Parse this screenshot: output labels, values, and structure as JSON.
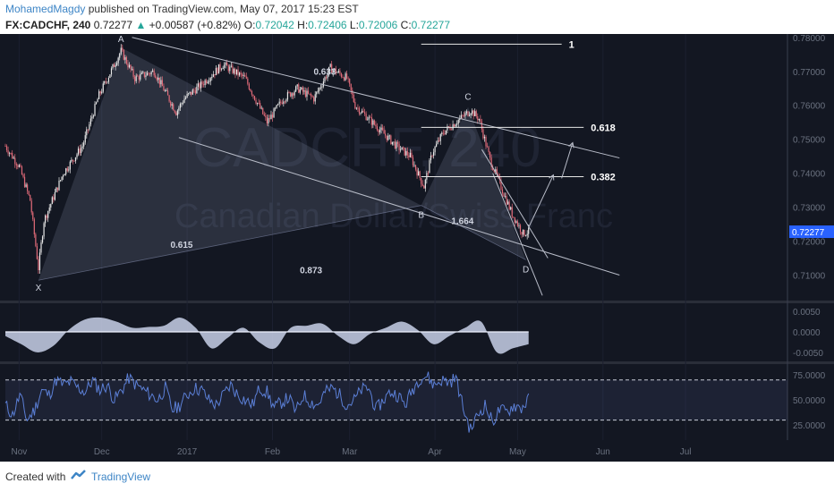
{
  "header": {
    "author": "MohamedMagdy",
    "published_text": "published on TradingView.com, May 07, 2017 15:23 EST",
    "symbol": "FX:CADCHF, 240",
    "last": "0.72277",
    "change": "+0.00587 (+0.82%)",
    "open_label": "O:",
    "open": "0.72042",
    "high_label": "H:",
    "high": "0.72406",
    "low_label": "L:",
    "low": "0.72006",
    "close_label": "C:",
    "close": "0.72277"
  },
  "watermark": {
    "symbol": "CADCHF, 240",
    "name": "Canadian Dollar/Swiss Franc"
  },
  "footer": {
    "created_with": "Created with",
    "brand": "TradingView"
  },
  "colors": {
    "background": "#131722",
    "candle_up": "#e8e8e8",
    "candle_down": "#e06a78",
    "oscillator": "#c8d0e8",
    "rsi_line": "#5b7fd6",
    "pattern_fill": "#9aa4c4",
    "price_badge": "#2962ff"
  },
  "chart_data": {
    "type": "candlestick",
    "instrument": "FX:CADCHF",
    "interval": "240",
    "ylim": [
      0.7025,
      0.781
    ],
    "price_axis_ticks": [
      "0.78000",
      "0.77000",
      "0.76000",
      "0.75000",
      "0.74000",
      "0.73000",
      "0.72000",
      "0.71000"
    ],
    "current_price_label": "0.72277",
    "time_axis_labels": [
      "Nov",
      "Dec",
      "2017",
      "Feb",
      "Mar",
      "Apr",
      "May",
      "Jun",
      "Jul"
    ],
    "price_path": [
      {
        "date": "2016-10-27",
        "price": 0.748
      },
      {
        "date": "2016-11-01",
        "price": 0.742
      },
      {
        "date": "2016-11-05",
        "price": 0.732
      },
      {
        "date": "2016-11-08",
        "price": 0.712
      },
      {
        "date": "2016-11-10",
        "price": 0.726
      },
      {
        "date": "2016-11-17",
        "price": 0.74
      },
      {
        "date": "2016-11-24",
        "price": 0.748
      },
      {
        "date": "2016-11-30",
        "price": 0.763
      },
      {
        "date": "2016-12-08",
        "price": 0.776
      },
      {
        "date": "2016-12-13",
        "price": 0.768
      },
      {
        "date": "2016-12-20",
        "price": 0.77
      },
      {
        "date": "2016-12-28",
        "price": 0.758
      },
      {
        "date": "2016-12-31",
        "price": 0.762
      },
      {
        "date": "2017-01-06",
        "price": 0.766
      },
      {
        "date": "2017-01-14",
        "price": 0.772
      },
      {
        "date": "2017-01-22",
        "price": 0.768
      },
      {
        "date": "2017-01-30",
        "price": 0.755
      },
      {
        "date": "2017-02-05",
        "price": 0.762
      },
      {
        "date": "2017-02-10",
        "price": 0.765
      },
      {
        "date": "2017-02-16",
        "price": 0.762
      },
      {
        "date": "2017-02-22",
        "price": 0.771
      },
      {
        "date": "2017-02-28",
        "price": 0.768
      },
      {
        "date": "2017-03-03",
        "price": 0.76
      },
      {
        "date": "2017-03-08",
        "price": 0.756
      },
      {
        "date": "2017-03-13",
        "price": 0.752
      },
      {
        "date": "2017-03-18",
        "price": 0.748
      },
      {
        "date": "2017-03-23",
        "price": 0.745
      },
      {
        "date": "2017-03-28",
        "price": 0.736
      },
      {
        "date": "2017-03-31",
        "price": 0.746
      },
      {
        "date": "2017-04-04",
        "price": 0.752
      },
      {
        "date": "2017-04-10",
        "price": 0.756
      },
      {
        "date": "2017-04-14",
        "price": 0.7585
      },
      {
        "date": "2017-04-17",
        "price": 0.756
      },
      {
        "date": "2017-04-21",
        "price": 0.744
      },
      {
        "date": "2017-04-25",
        "price": 0.736
      },
      {
        "date": "2017-04-29",
        "price": 0.728
      },
      {
        "date": "2017-05-03",
        "price": 0.7222
      },
      {
        "date": "2017-05-05",
        "price": 0.7228
      }
    ],
    "harmonic_points": [
      {
        "label": "X",
        "date": "2016-11-08",
        "price": 0.7085
      },
      {
        "label": "A",
        "date": "2016-12-08",
        "price": 0.777
      },
      {
        "label": "B",
        "date": "2017-03-27",
        "price": 0.7305
      },
      {
        "label": "C",
        "date": "2017-04-13",
        "price": 0.7595
      },
      {
        "label": "D",
        "date": "2017-05-04",
        "price": 0.7145
      }
    ],
    "ratio_labels": [
      {
        "text": "0.633",
        "date": "2017-02-20",
        "price": 0.769
      },
      {
        "text": "0.615",
        "date": "2016-12-30",
        "price": 0.718
      },
      {
        "text": "0.873",
        "date": "2017-02-15",
        "price": 0.7105
      },
      {
        "text": "1.664",
        "date": "2017-04-11",
        "price": 0.725
      }
    ],
    "levels": [
      {
        "label": "1",
        "price": 0.778,
        "from": "2017-03-27",
        "to": "2017-05-17"
      },
      {
        "label": "0.618",
        "price": 0.7535,
        "from": "2017-03-27",
        "to": "2017-05-25"
      },
      {
        "label": "0.382",
        "price": 0.739,
        "from": "2017-03-27",
        "to": "2017-05-25"
      }
    ],
    "channel_lines": [
      {
        "from": {
          "date": "2016-12-12",
          "price": 0.78
        },
        "to": {
          "date": "2017-06-07",
          "price": 0.7445
        }
      },
      {
        "from": {
          "date": "2016-12-29",
          "price": 0.7505
        },
        "to": {
          "date": "2017-06-07",
          "price": 0.71
        }
      },
      {
        "from": {
          "date": "2017-04-18",
          "price": 0.747
        },
        "to": {
          "date": "2017-05-12",
          "price": 0.715
        }
      },
      {
        "from": {
          "date": "2017-04-22",
          "price": 0.74
        },
        "to": {
          "date": "2017-05-10",
          "price": 0.704
        }
      }
    ],
    "projection_arrows": [
      {
        "from": {
          "date": "2017-05-05",
          "price": 0.724
        },
        "to": {
          "date": "2017-05-14",
          "price": 0.7395
        }
      },
      {
        "from": {
          "date": "2017-05-17",
          "price": 0.7385
        },
        "to": {
          "date": "2017-05-21",
          "price": 0.749
        }
      }
    ],
    "oscillator": {
      "ticks": [
        "0.0050",
        "0.0000",
        "-0.0050"
      ],
      "ylim": [
        -0.0072,
        0.0072
      ],
      "values": [
        -0.001,
        -0.003,
        -0.005,
        -0.0035,
        0.0005,
        0.003,
        0.0035,
        0.0025,
        0.001,
        0.0012,
        0.0015,
        0.0035,
        0.001,
        -0.004,
        -0.0015,
        0.001,
        -0.0025,
        -0.004,
        0.001,
        0.0015,
        0.002,
        -0.001,
        -0.003,
        -0.0005,
        0.001,
        0.0025,
        0.0005,
        -0.003,
        -0.001,
        0.001,
        0.0025,
        -0.005,
        -0.004,
        -0.003
      ]
    },
    "rsi": {
      "ticks": [
        "75.0000",
        "50.0000",
        "25.0000"
      ],
      "ylim": [
        10,
        85
      ],
      "band": [
        30,
        70
      ],
      "values": [
        45,
        35,
        55,
        30,
        40,
        60,
        55,
        70,
        65,
        68,
        62,
        58,
        70,
        60,
        65,
        50,
        60,
        72,
        65,
        60,
        55,
        50,
        62,
        40,
        45,
        55,
        62,
        60,
        50,
        45,
        55,
        65,
        55,
        50,
        45,
        62,
        58,
        42,
        48,
        52,
        38,
        55,
        48,
        45,
        58,
        62,
        55,
        45,
        50,
        60,
        62,
        40,
        50,
        58,
        55,
        45,
        60,
        72,
        74,
        65,
        70,
        68,
        72,
        42,
        20,
        35,
        45,
        28,
        40,
        38,
        45,
        42,
        50
      ]
    }
  }
}
